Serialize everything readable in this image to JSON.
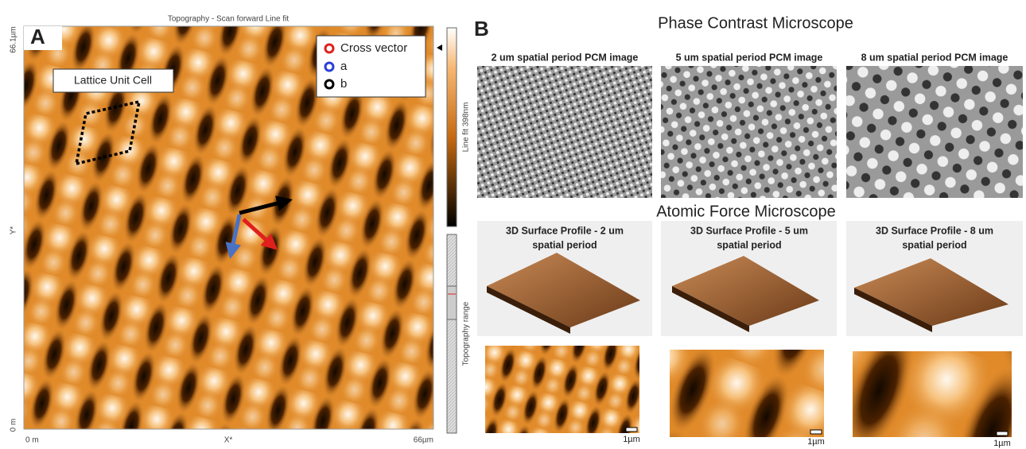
{
  "panel_a": {
    "label": "A",
    "title": "Topography - Scan forward   Line fit",
    "y_axis": {
      "top": "66.1µm",
      "middle": "Y*",
      "bottom": "0 m"
    },
    "x_axis": {
      "left": "0 m",
      "middle": "X*",
      "right": "66µm"
    },
    "annotation": "Lattice Unit Cell",
    "legend": [
      "Cross vector",
      "a",
      "b"
    ],
    "colorbar_label": "Line fit 398nm",
    "range_label": "Topography range"
  },
  "panel_b": {
    "label": "B",
    "pcm_title": "Phase Contrast Microscope",
    "pcm_images": [
      "2 um spatial period PCM image",
      "5 um spatial period PCM image",
      "8 um spatial period PCM image"
    ],
    "afm_title": "Atomic Force Microscope",
    "afm_profiles": [
      [
        "3D Surface Profile - 2 um",
        "spatial period"
      ],
      [
        "3D Surface Profile - 5 um",
        "spatial period"
      ],
      [
        "3D Surface Profile - 8 um",
        "spatial period"
      ]
    ],
    "scale_bars": [
      "1µm",
      "1µm",
      "1µm"
    ]
  }
}
